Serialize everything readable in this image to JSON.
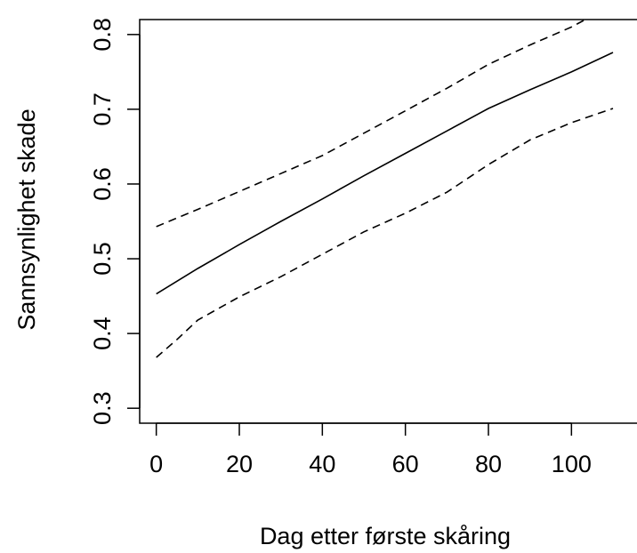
{
  "chart_data": {
    "type": "line",
    "title": "",
    "xlabel": "Dag etter første skåring",
    "ylabel": "Sannsynlighet skade",
    "xlim": [
      -4,
      116
    ],
    "ylim": [
      0.28,
      0.82
    ],
    "x_ticks": [
      "0",
      "20",
      "40",
      "60",
      "80",
      "100"
    ],
    "x_tick_values": [
      0,
      20,
      40,
      60,
      80,
      100
    ],
    "y_ticks": [
      "0.3",
      "0.4",
      "0.5",
      "0.6",
      "0.7",
      "0.8"
    ],
    "y_tick_values": [
      0.3,
      0.4,
      0.5,
      0.6,
      0.7,
      0.8
    ],
    "grid": false,
    "legend": "none",
    "series": [
      {
        "style": "solid",
        "x": [
          0,
          10,
          20,
          30,
          40,
          50,
          60,
          70,
          80,
          90,
          100,
          110
        ],
        "y": [
          0.453,
          0.487,
          0.519,
          0.55,
          0.58,
          0.611,
          0.641,
          0.671,
          0.701,
          0.726,
          0.75,
          0.776
        ]
      },
      {
        "style": "dashed",
        "x": [
          0,
          10,
          20,
          30,
          40,
          50,
          60,
          70,
          80,
          90,
          100,
          105
        ],
        "y": [
          0.543,
          0.566,
          0.59,
          0.614,
          0.638,
          0.668,
          0.698,
          0.728,
          0.76,
          0.786,
          0.81,
          0.825
        ]
      },
      {
        "style": "dashed",
        "x": [
          0,
          5,
          10,
          20,
          30,
          40,
          50,
          60,
          70,
          80,
          90,
          100,
          110
        ],
        "y": [
          0.368,
          0.392,
          0.418,
          0.449,
          0.476,
          0.506,
          0.536,
          0.561,
          0.589,
          0.626,
          0.659,
          0.682,
          0.701
        ]
      }
    ]
  }
}
